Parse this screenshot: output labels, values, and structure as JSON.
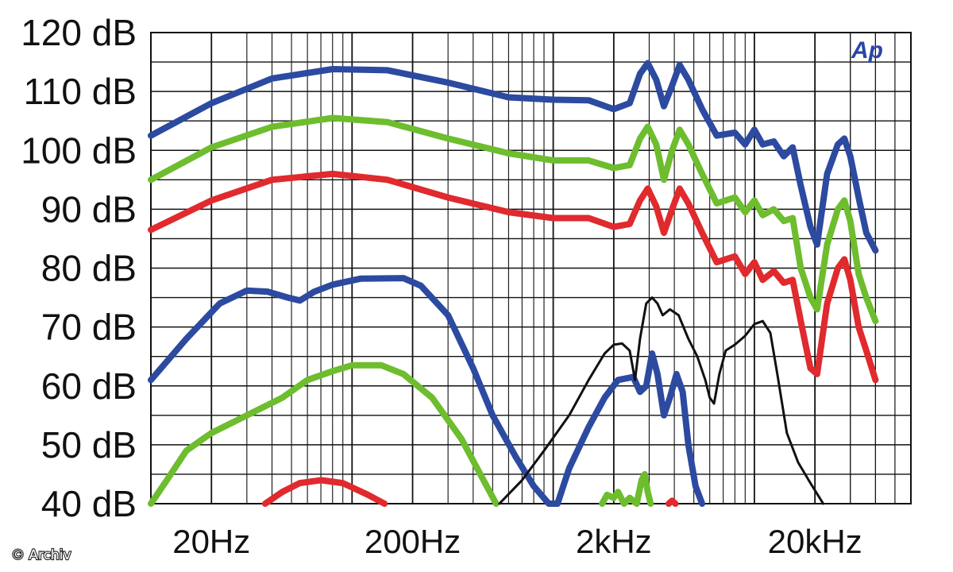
{
  "chart_data": {
    "type": "line",
    "xscale": "log",
    "xlim": [
      10,
      60000
    ],
    "ylim": [
      40,
      120
    ],
    "grid": true,
    "y_tick_labels": [
      "120 dB",
      "110 dB",
      "100 dB",
      "90 dB",
      "80 dB",
      "70 dB",
      "60 dB",
      "50 dB",
      "40 dB"
    ],
    "y_ticks": [
      120,
      110,
      100,
      90,
      80,
      70,
      60,
      50,
      40
    ],
    "x_tick_labels": [
      "20Hz",
      "200Hz",
      "2kHz",
      "20kHz"
    ],
    "x_ticks": [
      20,
      200,
      2000,
      20000
    ],
    "logo": "Ap",
    "credit": "© Archiv",
    "series": [
      {
        "color": "#2c4aa0",
        "points": [
          [
            10,
            102.5
          ],
          [
            20,
            108
          ],
          [
            40,
            112.2
          ],
          [
            80,
            113.8
          ],
          [
            150,
            113.6
          ],
          [
            300,
            111.5
          ],
          [
            600,
            109
          ],
          [
            1000,
            108.6
          ],
          [
            1500,
            108.5
          ],
          [
            2000,
            107
          ],
          [
            2400,
            108
          ],
          [
            2700,
            113
          ],
          [
            2950,
            114.8
          ],
          [
            3250,
            112
          ],
          [
            3550,
            107.5
          ],
          [
            3900,
            111
          ],
          [
            4250,
            114.5
          ],
          [
            4700,
            112
          ],
          [
            5500,
            107
          ],
          [
            6500,
            102.5
          ],
          [
            8000,
            103
          ],
          [
            9000,
            101
          ],
          [
            10000,
            103.5
          ],
          [
            11000,
            101
          ],
          [
            12500,
            101.5
          ],
          [
            14000,
            99
          ],
          [
            15500,
            100.5
          ],
          [
            17000,
            94
          ],
          [
            19000,
            87
          ],
          [
            20500,
            84
          ],
          [
            23000,
            96
          ],
          [
            26000,
            101
          ],
          [
            28000,
            102
          ],
          [
            30000,
            99
          ],
          [
            33000,
            92
          ],
          [
            36000,
            86
          ],
          [
            40000,
            83
          ]
        ]
      },
      {
        "color": "#6dbd2e",
        "points": [
          [
            10,
            95
          ],
          [
            20,
            100.5
          ],
          [
            40,
            104
          ],
          [
            80,
            105.5
          ],
          [
            150,
            104.8
          ],
          [
            300,
            102
          ],
          [
            600,
            99.5
          ],
          [
            1000,
            98.3
          ],
          [
            1500,
            98.3
          ],
          [
            2000,
            97
          ],
          [
            2400,
            97.5
          ],
          [
            2700,
            102
          ],
          [
            2950,
            104
          ],
          [
            3250,
            101
          ],
          [
            3550,
            95
          ],
          [
            3900,
            100
          ],
          [
            4250,
            103.5
          ],
          [
            4700,
            101
          ],
          [
            5500,
            96
          ],
          [
            6500,
            91
          ],
          [
            8000,
            92
          ],
          [
            9000,
            89.5
          ],
          [
            10000,
            91.5
          ],
          [
            11000,
            89
          ],
          [
            12500,
            90
          ],
          [
            14000,
            88
          ],
          [
            15500,
            88.5
          ],
          [
            17000,
            80
          ],
          [
            19000,
            75
          ],
          [
            20500,
            73
          ],
          [
            23000,
            84
          ],
          [
            26000,
            90
          ],
          [
            28000,
            91.5
          ],
          [
            30000,
            88
          ],
          [
            33000,
            79
          ],
          [
            36000,
            75
          ],
          [
            40000,
            71
          ]
        ]
      },
      {
        "color": "#e02a2e",
        "points": [
          [
            10,
            86.5
          ],
          [
            20,
            91.5
          ],
          [
            40,
            95
          ],
          [
            80,
            96
          ],
          [
            150,
            95
          ],
          [
            300,
            92
          ],
          [
            600,
            89.5
          ],
          [
            1000,
            88.5
          ],
          [
            1500,
            88.5
          ],
          [
            2000,
            87
          ],
          [
            2400,
            87.5
          ],
          [
            2700,
            91.5
          ],
          [
            2950,
            93.5
          ],
          [
            3250,
            90.5
          ],
          [
            3550,
            86
          ],
          [
            3900,
            90
          ],
          [
            4250,
            93.5
          ],
          [
            4700,
            91
          ],
          [
            5500,
            86
          ],
          [
            6500,
            81
          ],
          [
            8000,
            82
          ],
          [
            9000,
            79
          ],
          [
            10000,
            81
          ],
          [
            11000,
            78
          ],
          [
            12500,
            79.5
          ],
          [
            14000,
            77.5
          ],
          [
            15500,
            78
          ],
          [
            17000,
            71
          ],
          [
            19000,
            63
          ],
          [
            20500,
            62
          ],
          [
            23000,
            74
          ],
          [
            26000,
            80
          ],
          [
            28000,
            81.5
          ],
          [
            30000,
            78
          ],
          [
            33000,
            70
          ],
          [
            36000,
            66
          ],
          [
            40000,
            61
          ]
        ]
      },
      {
        "color": "#2c4aa0",
        "points": [
          [
            10,
            61
          ],
          [
            15,
            68
          ],
          [
            22,
            74
          ],
          [
            30,
            76.2
          ],
          [
            38,
            76
          ],
          [
            48,
            75
          ],
          [
            55,
            74.5
          ],
          [
            65,
            76
          ],
          [
            80,
            77.2
          ],
          [
            110,
            78.2
          ],
          [
            180,
            78.3
          ],
          [
            220,
            77
          ],
          [
            300,
            72
          ],
          [
            400,
            63
          ],
          [
            500,
            55
          ],
          [
            650,
            48
          ],
          [
            800,
            43
          ],
          [
            950,
            40
          ],
          [
            1050,
            40
          ],
          [
            1200,
            46
          ],
          [
            1500,
            53
          ],
          [
            1800,
            58
          ],
          [
            2100,
            61
          ],
          [
            2500,
            61.5
          ],
          [
            2700,
            59
          ],
          [
            2900,
            60
          ],
          [
            3100,
            65.5
          ],
          [
            3300,
            62
          ],
          [
            3550,
            55
          ],
          [
            3800,
            58
          ],
          [
            4100,
            62
          ],
          [
            4400,
            59
          ],
          [
            4700,
            50
          ],
          [
            5100,
            43
          ],
          [
            5500,
            40
          ]
        ]
      },
      {
        "color": "#6dbd2e",
        "points": [
          [
            10,
            40
          ],
          [
            12,
            44
          ],
          [
            15,
            49
          ],
          [
            20,
            52
          ],
          [
            30,
            55
          ],
          [
            45,
            58
          ],
          [
            60,
            61
          ],
          [
            80,
            62.5
          ],
          [
            100,
            63.5
          ],
          [
            140,
            63.5
          ],
          [
            180,
            62
          ],
          [
            250,
            58
          ],
          [
            350,
            51
          ],
          [
            450,
            44
          ],
          [
            520,
            40
          ]
        ]
      },
      {
        "color": "#e02a2e",
        "points": [
          [
            37,
            40
          ],
          [
            45,
            42
          ],
          [
            55,
            43.5
          ],
          [
            70,
            44
          ],
          [
            90,
            43.5
          ],
          [
            120,
            41.5
          ],
          [
            145,
            40
          ]
        ]
      },
      {
        "color": "#6dbd2e",
        "points": [
          [
            1750,
            40
          ],
          [
            1850,
            41.5
          ],
          [
            2000,
            41
          ],
          [
            2100,
            42
          ],
          [
            2250,
            40
          ],
          [
            2400,
            41
          ],
          [
            2600,
            40
          ],
          [
            2750,
            44
          ],
          [
            2850,
            45
          ],
          [
            2950,
            42
          ],
          [
            3050,
            40
          ]
        ]
      },
      {
        "color": "#e02a2e",
        "points": [
          [
            3750,
            40
          ],
          [
            3900,
            40.5
          ],
          [
            4050,
            40
          ]
        ]
      },
      {
        "color": "#111111",
        "points": [
          [
            540,
            40
          ],
          [
            700,
            44
          ],
          [
            900,
            49
          ],
          [
            1200,
            55
          ],
          [
            1500,
            61
          ],
          [
            1800,
            65.5
          ],
          [
            2000,
            67
          ],
          [
            2200,
            67.2
          ],
          [
            2400,
            66
          ],
          [
            2550,
            61
          ],
          [
            2700,
            68
          ],
          [
            2900,
            74
          ],
          [
            3100,
            75
          ],
          [
            3300,
            74
          ],
          [
            3500,
            72
          ],
          [
            3800,
            73
          ],
          [
            4200,
            72
          ],
          [
            4700,
            68
          ],
          [
            5200,
            65
          ],
          [
            5700,
            61
          ],
          [
            6000,
            58
          ],
          [
            6300,
            57
          ],
          [
            6700,
            62
          ],
          [
            7200,
            66
          ],
          [
            8000,
            67
          ],
          [
            9000,
            68.5
          ],
          [
            10000,
            70.5
          ],
          [
            11000,
            71
          ],
          [
            12000,
            69
          ],
          [
            13000,
            62
          ],
          [
            14500,
            52
          ],
          [
            16500,
            47
          ],
          [
            19000,
            43.5
          ],
          [
            22000,
            40
          ]
        ]
      }
    ]
  }
}
